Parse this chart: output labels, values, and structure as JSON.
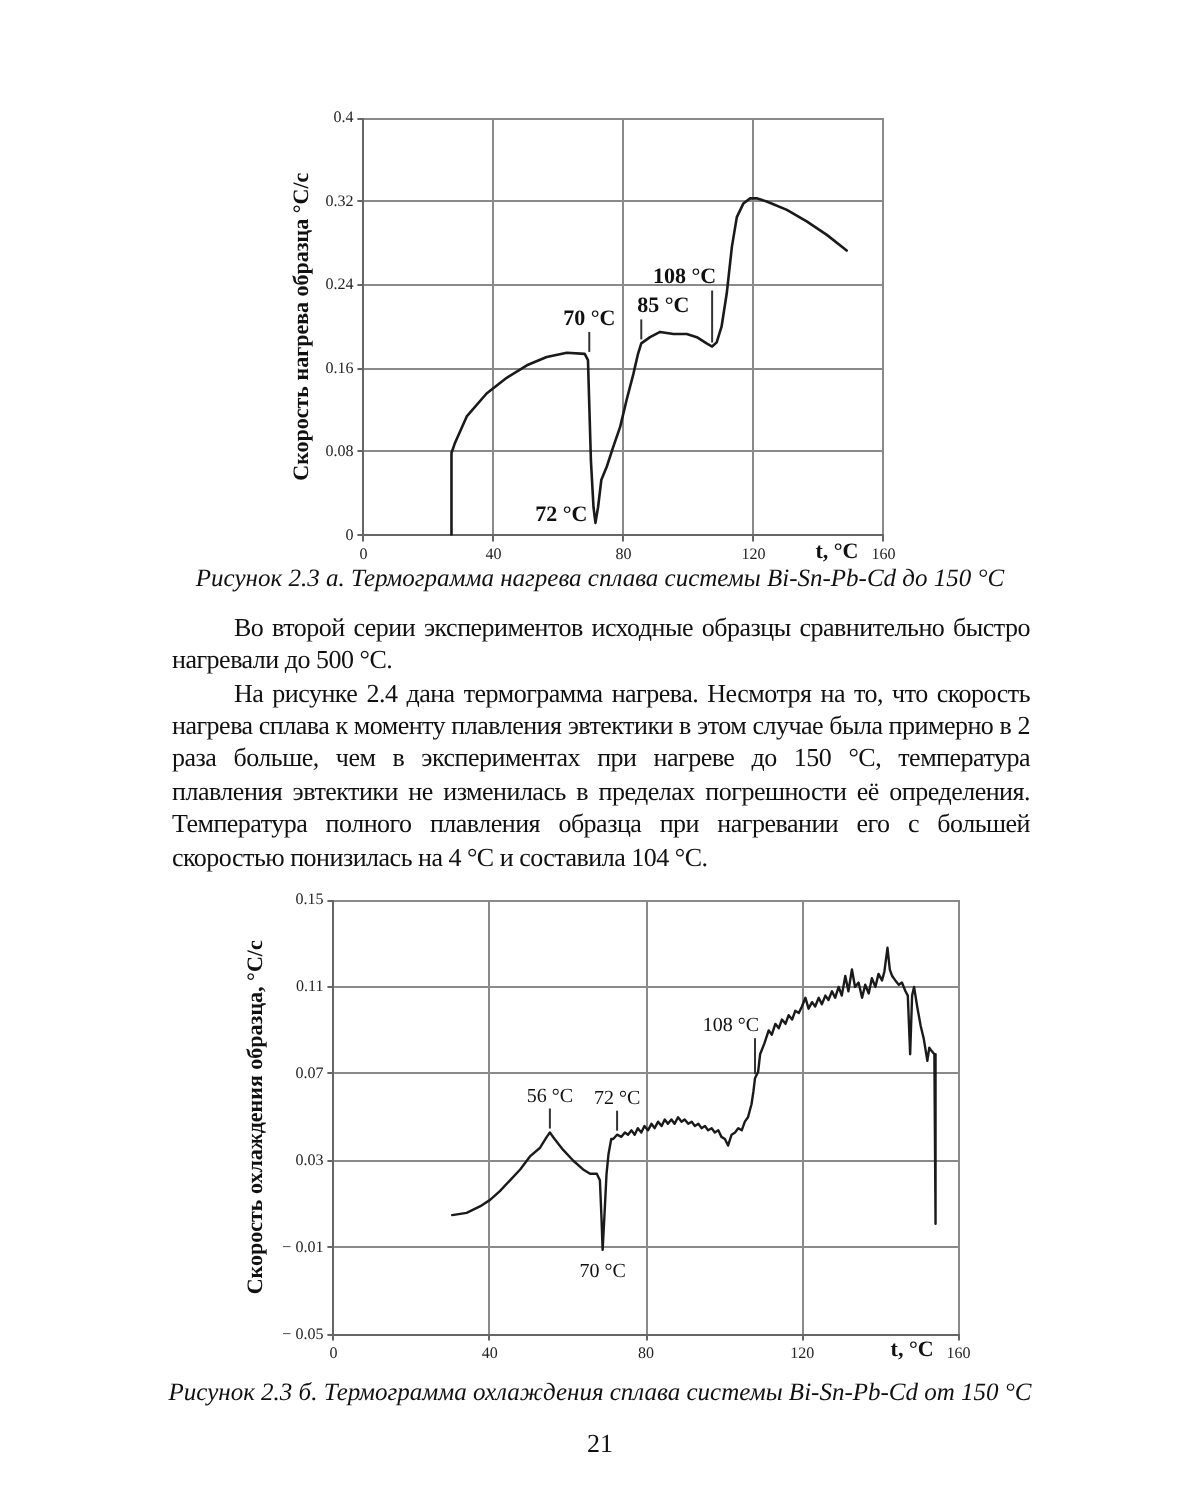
{
  "chart_data": [
    {
      "type": "line",
      "ylabel": "Скорость нагрева образца °С/с",
      "xlabel": "t, °C",
      "color": "#1a1a1a",
      "grid": true,
      "xlim": [
        0,
        160
      ],
      "xticks": [
        0,
        40,
        80,
        120,
        160
      ],
      "ylim": [
        0,
        0.4
      ],
      "yticks": [
        0,
        0.08,
        0.16,
        0.24,
        0.32,
        0.4
      ],
      "x": [
        27.1,
        27.1,
        28.1,
        31.8,
        37.9,
        44.1,
        50.3,
        56.4,
        62.6,
        68.1,
        69.1,
        70.0,
        70.8,
        71.4,
        72.2,
        73.2,
        74.9,
        76.9,
        79.0,
        81.0,
        83.1,
        84.5,
        85.5,
        88.2,
        91.3,
        95.4,
        99.5,
        102.6,
        105.6,
        107.3,
        108.7,
        110.2,
        111.8,
        113.4,
        114.9,
        116.9,
        119.0,
        121.0,
        124.1,
        130.3,
        136.4,
        142.6,
        148.7
      ],
      "values": [
        0,
        0.079,
        0.088,
        0.114,
        0.136,
        0.151,
        0.163,
        0.171,
        0.175,
        0.174,
        0.168,
        0.072,
        0.027,
        0.012,
        0.027,
        0.053,
        0.066,
        0.085,
        0.104,
        0.13,
        0.155,
        0.174,
        0.184,
        0.19,
        0.195,
        0.193,
        0.193,
        0.19,
        0.184,
        0.181,
        0.185,
        0.2,
        0.232,
        0.277,
        0.305,
        0.318,
        0.323,
        0.323,
        0.32,
        0.312,
        0.301,
        0.288,
        0.273
      ],
      "annotations": [
        "Рисунок 2.3 а. Термограмма нагрева сплава системы Bi-Sn-Pb-Cd до 150 °С",
        "Во второй серии экспериментов исходные образцы сравнительно быстро нагревали до 500 °С.",
        "На рисунке 2.4 дана термограмма нагрева. Несмотря на то, что скорость нагрева сплава к моменту плавления эвтектики в этом случае была примерно в 2 раза больше, чем в экспериментах при нагреве до 150 °С, температура плавления эвтектики не изменилась в пределах погрешности её определения. Температура полного плавления образца при нагревании его с большей скоростью понизилась на 4 °С и составила 104 °С.",
        {
          "text": "70 °C",
          "x": 69.5,
          "y": 0.172
        },
        {
          "text": "72 °C",
          "x": 71.4,
          "y": 0.012
        },
        {
          "text": "85 °C",
          "x": 85.5,
          "y": 0.184
        },
        {
          "text": "108 °C",
          "x": 107.3,
          "y": 0.181
        }
      ]
    },
    {
      "type": "line",
      "ylabel": "Скорость охлаждения образца, °С/с",
      "xlabel": "t, °C",
      "color": "#1a1a1a",
      "grid": true,
      "xlim": [
        0,
        160
      ],
      "xticks": [
        0,
        40,
        80,
        120,
        160
      ],
      "ylim": [
        -0.05,
        0.15
      ],
      "yticks": [
        {
          "value": -0.05,
          "label": "− 0.05"
        },
        {
          "value": -0.01,
          "label": "− 0.01"
        },
        0.03,
        0.07,
        0.11,
        0.15
      ],
      "x": [
        30.4,
        34.1,
        37.5,
        40.1,
        42.6,
        45.2,
        47.8,
        50.3,
        52.9,
        54.6,
        55.4,
        56.6,
        58.8,
        61.4,
        63.9,
        65.7,
        67.4,
        68.2,
        68.6,
        68.9,
        69.4,
        69.9,
        70.4,
        71.1,
        71.6,
        72.6,
        73.7,
        74.6,
        75.4,
        76.3,
        77.1,
        77.9,
        78.8,
        79.6,
        80.5,
        81.4,
        82.2,
        83.1,
        84.0,
        84.8,
        85.6,
        86.5,
        87.3,
        88.2,
        89.1,
        89.9,
        90.8,
        91.7,
        92.5,
        93.4,
        94.2,
        95.1,
        95.9,
        96.8,
        97.6,
        98.5,
        99.3,
        100.2,
        101.0,
        101.9,
        102.8,
        103.6,
        104.5,
        105.3,
        106.1,
        107.0,
        107.5,
        107.9,
        108.7,
        109.2,
        110.3,
        111.4,
        112.2,
        113.1,
        114.0,
        114.8,
        115.7,
        116.5,
        117.4,
        118.2,
        119.1,
        119.9,
        120.8,
        121.6,
        122.5,
        123.3,
        124.2,
        125.0,
        125.9,
        126.7,
        127.6,
        128.4,
        129.3,
        130.1,
        131.0,
        131.8,
        132.7,
        133.5,
        134.4,
        135.3,
        136.1,
        137.0,
        137.8,
        138.7,
        139.5,
        140.4,
        141.0,
        141.8,
        142.4,
        143.0,
        143.8,
        144.7,
        145.5,
        146.4,
        147.0,
        147.6,
        148.1,
        148.6,
        149.4,
        150.3,
        151.1,
        152.0,
        152.5,
        152.9,
        153.8,
        154.1
      ],
      "values": [
        0.005,
        0.006,
        0.009,
        0.012,
        0.016,
        0.021,
        0.026,
        0.032,
        0.036,
        0.041,
        0.043,
        0.04,
        0.035,
        0.03,
        0.026,
        0.024,
        0.024,
        0.021,
        0.004,
        -0.011,
        0.006,
        0.024,
        0.033,
        0.04,
        0.04,
        0.042,
        0.041,
        0.043,
        0.042,
        0.044,
        0.042,
        0.045,
        0.043,
        0.046,
        0.044,
        0.047,
        0.045,
        0.048,
        0.046,
        0.049,
        0.047,
        0.049,
        0.047,
        0.05,
        0.048,
        0.049,
        0.047,
        0.048,
        0.046,
        0.047,
        0.045,
        0.046,
        0.044,
        0.045,
        0.043,
        0.044,
        0.041,
        0.04,
        0.037,
        0.042,
        0.043,
        0.045,
        0.044,
        0.048,
        0.05,
        0.056,
        0.062,
        0.068,
        0.071,
        0.079,
        0.084,
        0.09,
        0.088,
        0.093,
        0.091,
        0.095,
        0.093,
        0.097,
        0.095,
        0.099,
        0.098,
        0.101,
        0.105,
        0.1,
        0.103,
        0.101,
        0.105,
        0.102,
        0.106,
        0.104,
        0.108,
        0.105,
        0.11,
        0.106,
        0.115,
        0.108,
        0.118,
        0.11,
        0.112,
        0.105,
        0.111,
        0.107,
        0.114,
        0.11,
        0.116,
        0.113,
        0.117,
        0.128,
        0.118,
        0.115,
        0.113,
        0.111,
        0.112,
        0.108,
        0.106,
        0.079,
        0.106,
        0.11,
        0.101,
        0.092,
        0.086,
        0.076,
        0.082,
        0.081,
        0.079,
        0.001
      ],
      "annotations": [
        "Рисунок 2.3 б. Термограмма охлаждения сплава системы Bi-Sn-Pb-Cd от 150 °С",
        "21",
        {
          "text": "56 °C",
          "x": 55.4,
          "y": 0.043
        },
        {
          "text": "72 °C",
          "x": 72.6,
          "y": 0.042
        },
        {
          "text": "70 °C",
          "x": 68.9,
          "y": -0.011
        },
        {
          "text": "108 °C",
          "x": 107.9,
          "y": 0.068
        }
      ]
    }
  ]
}
